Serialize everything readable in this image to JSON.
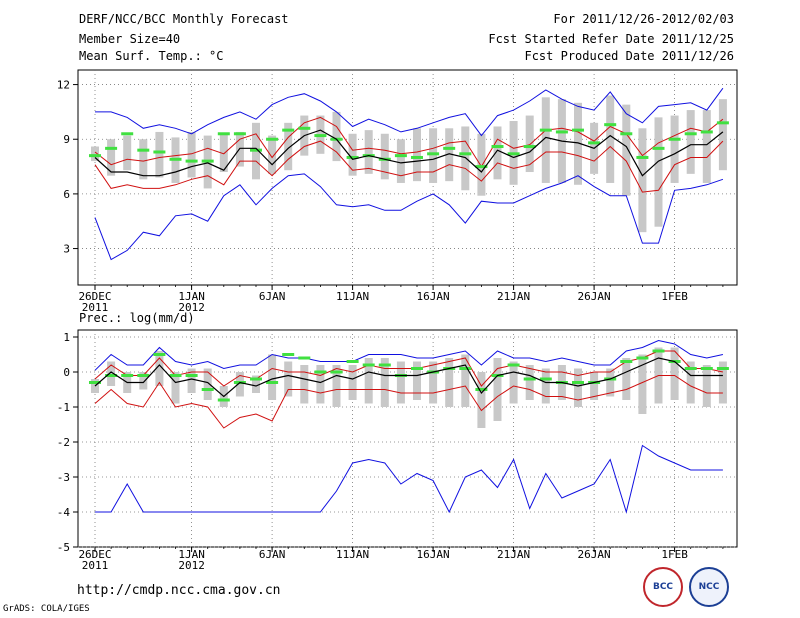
{
  "header": {
    "title": "DERF/NCC/BCC Monthly Forecast",
    "member": "Member Size=40",
    "variable": "Mean Surf. Temp.: °C",
    "period": "For 2011/12/26-2012/02/03",
    "started": "Fcst Started Refer Date 2011/12/25",
    "produced": "Fcst Produced Date 2011/12/26"
  },
  "footer": {
    "url": "http://cmdp.ncc.cma.gov.cn",
    "credit": "GrADS: COLA/IGES",
    "logo_bcc": "BCC",
    "logo_ncc": "NCC"
  },
  "chart_data": [
    {
      "type": "line",
      "title": "Mean Surf. Temp.: °C",
      "ylim": [
        1,
        12.8
      ],
      "yticks": [
        3,
        6,
        9,
        12
      ],
      "ytick_labels": [
        "3",
        "6",
        "9",
        "12"
      ],
      "xticks": [
        0,
        6,
        11,
        16,
        21,
        26,
        31,
        36
      ],
      "xtick_labels": [
        "26DEC\n2011",
        "1JAN\n2012",
        "6JAN",
        "11JAN",
        "16JAN",
        "21JAN",
        "26JAN",
        "1FEB"
      ],
      "days": 40,
      "max": [
        10.5,
        10.5,
        10.2,
        9.6,
        9.8,
        9.6,
        9.3,
        9.8,
        10.2,
        10.5,
        10.1,
        10.9,
        11.3,
        11.5,
        11.1,
        10.5,
        9.7,
        10.1,
        9.8,
        9.4,
        9.6,
        9.9,
        10.2,
        10.4,
        9.2,
        10.3,
        10.6,
        11.1,
        11.7,
        11.2,
        10.8,
        10.6,
        11.6,
        10.4,
        9.9,
        10.8,
        10.9,
        11.0,
        10.6,
        11.8
      ],
      "p75": [
        8.3,
        7.6,
        7.9,
        7.8,
        8.0,
        8.1,
        8.2,
        8.5,
        8.2,
        9.0,
        9.3,
        8.0,
        9.1,
        9.9,
        10.2,
        9.7,
        8.4,
        8.5,
        8.4,
        8.2,
        8.3,
        8.5,
        8.8,
        8.9,
        7.5,
        9.0,
        8.5,
        8.7,
        9.5,
        9.6,
        9.4,
        8.9,
        9.7,
        9.3,
        8.1,
        8.8,
        9.2,
        9.6,
        9.4,
        10.1
      ],
      "mean": [
        8.0,
        7.2,
        7.2,
        7.0,
        7.0,
        7.2,
        7.5,
        7.7,
        7.3,
        8.5,
        8.5,
        7.6,
        8.5,
        9.2,
        9.5,
        9.0,
        7.9,
        8.1,
        7.9,
        7.7,
        7.8,
        7.9,
        8.2,
        8.0,
        7.2,
        8.4,
        8.0,
        8.3,
        9.1,
        8.9,
        8.8,
        8.5,
        9.2,
        8.6,
        7.0,
        7.8,
        8.2,
        8.7,
        8.7,
        9.4
      ],
      "p25": [
        7.6,
        6.3,
        6.5,
        6.3,
        6.3,
        6.5,
        6.8,
        7.0,
        6.5,
        7.8,
        7.8,
        7.0,
        7.9,
        8.6,
        8.9,
        8.3,
        7.3,
        7.4,
        7.2,
        7.0,
        7.2,
        7.2,
        7.6,
        7.4,
        6.7,
        7.7,
        7.4,
        7.6,
        8.3,
        8.3,
        8.1,
        7.8,
        8.6,
        7.8,
        6.1,
        6.2,
        7.6,
        8.0,
        8.0,
        8.9
      ],
      "min": [
        4.7,
        2.4,
        2.9,
        3.9,
        3.7,
        4.8,
        4.9,
        4.5,
        5.9,
        6.5,
        5.4,
        6.3,
        7.0,
        7.1,
        6.4,
        5.4,
        5.3,
        5.4,
        5.1,
        5.1,
        5.6,
        6.0,
        5.4,
        4.4,
        5.6,
        5.5,
        5.5,
        5.9,
        6.3,
        6.6,
        7.0,
        6.4,
        5.9,
        5.9,
        3.3,
        3.3,
        6.2,
        6.3,
        6.5,
        6.8
      ],
      "box_hi": [
        8.6,
        9.0,
        9.2,
        9.0,
        9.4,
        9.1,
        9.4,
        9.2,
        9.3,
        9.4,
        9.9,
        9.2,
        9.9,
        10.3,
        10.3,
        10.5,
        9.3,
        9.5,
        9.3,
        9.0,
        9.6,
        9.6,
        9.6,
        9.7,
        9.3,
        9.7,
        10.0,
        10.3,
        11.3,
        11.2,
        11.0,
        9.9,
        11.4,
        10.9,
        9.6,
        10.2,
        10.3,
        10.6,
        10.6,
        11.2
      ],
      "box_lo": [
        7.8,
        7.0,
        7.3,
        6.8,
        6.9,
        6.6,
        6.9,
        6.3,
        7.2,
        7.5,
        6.8,
        7.1,
        7.3,
        8.1,
        8.2,
        7.8,
        7.0,
        7.1,
        6.8,
        6.6,
        6.7,
        6.6,
        6.7,
        6.2,
        5.9,
        6.8,
        6.5,
        7.2,
        6.6,
        6.6,
        6.5,
        7.1,
        6.6,
        5.9,
        3.9,
        4.2,
        6.6,
        7.1,
        6.6,
        7.3
      ],
      "obs": [
        8.1,
        8.5,
        9.3,
        8.4,
        8.3,
        7.9,
        7.8,
        7.8,
        9.3,
        9.3,
        8.4,
        9.0,
        9.5,
        9.6,
        9.2,
        9.0,
        8.0,
        8.1,
        7.9,
        8.1,
        8.0,
        8.2,
        8.5,
        8.2,
        7.5,
        8.6,
        8.2,
        8.6,
        9.5,
        9.4,
        9.5,
        8.8,
        9.8,
        9.3,
        8.0,
        8.5,
        9.0,
        9.3,
        9.4,
        9.9
      ]
    },
    {
      "type": "line",
      "title": "Prec.: log(mm/d)",
      "ylim": [
        -5,
        1.2
      ],
      "yticks": [
        -5,
        -4,
        -3,
        -2,
        -1,
        0,
        1
      ],
      "ytick_labels": [
        "-5",
        "-4",
        "-3",
        "-2",
        "-1",
        "0",
        "1"
      ],
      "xticks": [
        0,
        6,
        11,
        16,
        21,
        26,
        31,
        36
      ],
      "xtick_labels": [
        "26DEC\n2011",
        "1JAN\n2012",
        "6JAN",
        "11JAN",
        "16JAN",
        "21JAN",
        "26JAN",
        "1FEB"
      ],
      "days": 40,
      "max": [
        0.05,
        0.5,
        0.2,
        0.2,
        0.7,
        0.3,
        0.2,
        0.3,
        0.1,
        0.2,
        0.2,
        0.5,
        0.4,
        0.4,
        0.3,
        0.3,
        0.3,
        0.5,
        0.5,
        0.5,
        0.4,
        0.4,
        0.5,
        0.6,
        0.2,
        0.6,
        0.4,
        0.4,
        0.3,
        0.4,
        0.3,
        0.2,
        0.2,
        0.6,
        0.7,
        0.9,
        0.8,
        0.5,
        0.4,
        0.5
      ],
      "p75": [
        -0.2,
        0.2,
        -0.1,
        -0.1,
        0.4,
        -0.1,
        0.0,
        0.0,
        -0.4,
        -0.1,
        -0.2,
        0.1,
        0.0,
        0.0,
        -0.1,
        0.1,
        0.0,
        0.2,
        0.1,
        0.1,
        0.1,
        0.2,
        0.3,
        0.4,
        -0.4,
        0.1,
        0.2,
        0.1,
        0.0,
        0.0,
        -0.1,
        0.0,
        0.0,
        0.3,
        0.4,
        0.6,
        0.6,
        0.1,
        0.1,
        0.0
      ],
      "mean": [
        -0.4,
        0.0,
        -0.3,
        -0.3,
        0.2,
        -0.3,
        -0.2,
        -0.3,
        -0.7,
        -0.3,
        -0.4,
        -0.2,
        -0.1,
        -0.2,
        -0.3,
        -0.1,
        -0.2,
        0.0,
        -0.1,
        -0.1,
        -0.1,
        0.0,
        0.1,
        0.2,
        -0.6,
        -0.1,
        0.0,
        -0.1,
        -0.3,
        -0.3,
        -0.4,
        -0.3,
        -0.2,
        0.0,
        0.2,
        0.4,
        0.3,
        -0.1,
        -0.1,
        -0.1
      ],
      "p25": [
        -0.9,
        -0.5,
        -0.9,
        -1.0,
        -0.3,
        -1.0,
        -0.9,
        -1.0,
        -1.6,
        -1.3,
        -1.2,
        -1.4,
        -0.5,
        -0.5,
        -0.6,
        -0.5,
        -0.5,
        -0.5,
        -0.5,
        -0.6,
        -0.6,
        -0.6,
        -0.5,
        -0.4,
        -1.1,
        -0.7,
        -0.4,
        -0.5,
        -0.7,
        -0.7,
        -0.8,
        -0.7,
        -0.6,
        -0.5,
        -0.3,
        -0.1,
        -0.1,
        -0.4,
        -0.6,
        -0.6
      ],
      "min": [
        -4.0,
        -4.0,
        -3.2,
        -4.0,
        -4.0,
        -4.0,
        -4.0,
        -4.0,
        -4.0,
        -4.0,
        -4.0,
        -4.0,
        -4.0,
        -4.0,
        -4.0,
        -3.4,
        -2.6,
        -2.5,
        -2.6,
        -3.2,
        -2.9,
        -3.1,
        -4.0,
        -3.0,
        -2.8,
        -3.3,
        -2.5,
        -3.9,
        -2.9,
        -3.6,
        -3.4,
        -3.2,
        -2.5,
        -4.0,
        -2.1,
        -2.4,
        -2.6,
        -2.8,
        -2.8,
        -2.8
      ],
      "box_hi": [
        -0.2,
        0.3,
        0.0,
        0.0,
        0.6,
        0.0,
        0.1,
        0.1,
        -0.4,
        0.0,
        -0.1,
        0.5,
        0.3,
        0.2,
        0.2,
        0.2,
        0.2,
        0.4,
        0.4,
        0.3,
        0.3,
        0.3,
        0.4,
        0.5,
        0.0,
        0.4,
        0.3,
        0.2,
        0.1,
        0.2,
        0.1,
        0.0,
        0.1,
        0.4,
        0.5,
        0.7,
        0.7,
        0.3,
        0.2,
        0.3
      ],
      "box_lo": [
        -0.6,
        -0.4,
        -0.6,
        -0.5,
        -0.4,
        -0.9,
        -0.6,
        -0.8,
        -1.0,
        -0.7,
        -0.6,
        -0.8,
        -0.7,
        -0.9,
        -0.9,
        -1.0,
        -0.8,
        -0.9,
        -1.0,
        -0.9,
        -0.8,
        -0.9,
        -1.0,
        -1.0,
        -1.6,
        -1.4,
        -0.9,
        -0.8,
        -0.9,
        -0.8,
        -1.0,
        -0.8,
        -0.7,
        -0.8,
        -1.2,
        -0.9,
        -0.8,
        -0.9,
        -1.0,
        -0.9
      ],
      "obs": [
        -0.3,
        -0.1,
        -0.1,
        -0.1,
        0.5,
        -0.1,
        -0.1,
        -0.5,
        -0.8,
        -0.3,
        -0.2,
        -0.3,
        0.5,
        0.4,
        0.0,
        0.0,
        0.3,
        0.2,
        0.2,
        -0.1,
        0.1,
        0.0,
        0.1,
        0.1,
        -0.5,
        -0.1,
        0.2,
        -0.2,
        -0.2,
        -0.3,
        -0.3,
        -0.3,
        -0.2,
        0.3,
        0.4,
        0.6,
        0.3,
        0.1,
        0.1,
        0.1
      ]
    }
  ]
}
